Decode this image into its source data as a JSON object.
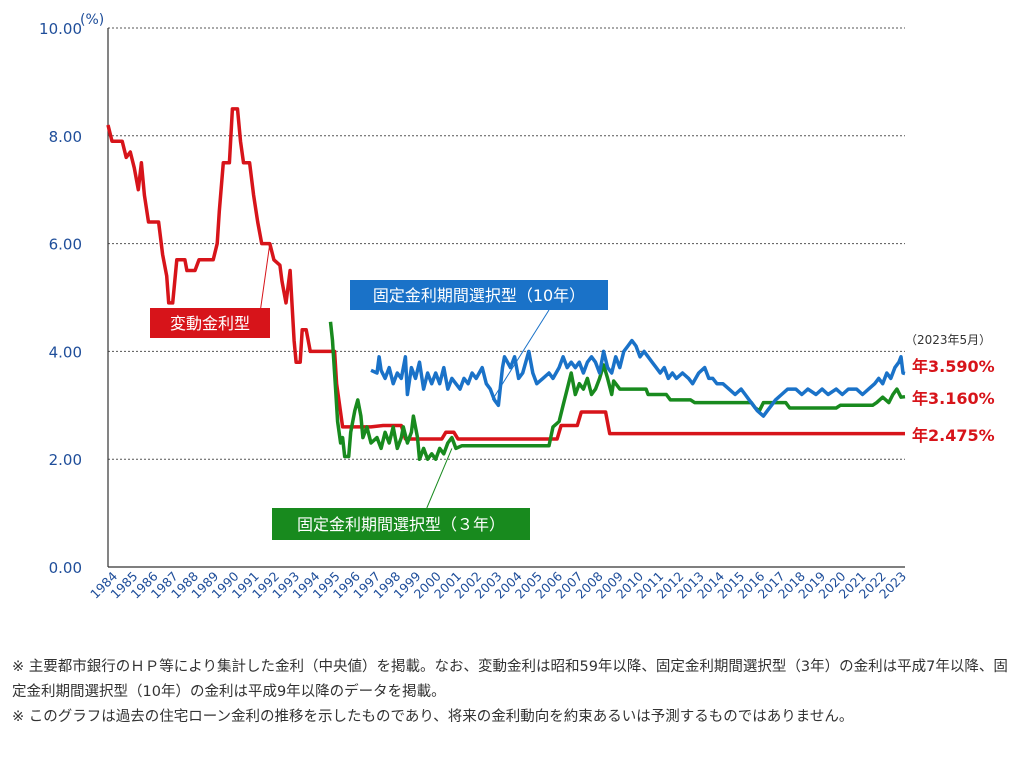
{
  "chart_data": {
    "type": "line",
    "ylabel_unit": "(%)",
    "ylim": [
      0,
      10
    ],
    "y_ticks": [
      "0.00",
      "2.00",
      "4.00",
      "6.00",
      "8.00",
      "10.00"
    ],
    "x_ticks": [
      "1984",
      "1985",
      "1986",
      "1987",
      "1988",
      "1989",
      "1990",
      "1991",
      "1992",
      "1993",
      "1994",
      "1995",
      "1996",
      "1997",
      "1998",
      "1999",
      "2000",
      "2001",
      "2002",
      "2003",
      "2004",
      "2005",
      "2006",
      "2007",
      "2008",
      "2009",
      "2010",
      "2011",
      "2012",
      "2013",
      "2014",
      "2015",
      "2016",
      "2017",
      "2018",
      "2019",
      "2020",
      "2021",
      "2022",
      "2023"
    ],
    "date_note": "（2023年5月）",
    "grid": "horizontal dotted",
    "colors": {
      "variable": "#d7141a",
      "fixed3": "#188a1e",
      "fixed10": "#1a72c8"
    },
    "series": [
      {
        "key": "variable",
        "name": "変動金利型",
        "end_label": "年2.475%",
        "points": [
          [
            1984.0,
            8.2
          ],
          [
            1984.2,
            7.9
          ],
          [
            1984.7,
            7.9
          ],
          [
            1984.9,
            7.6
          ],
          [
            1985.1,
            7.7
          ],
          [
            1985.3,
            7.4
          ],
          [
            1985.5,
            7.0
          ],
          [
            1985.65,
            7.5
          ],
          [
            1985.8,
            6.9
          ],
          [
            1986.0,
            6.4
          ],
          [
            1986.5,
            6.4
          ],
          [
            1986.7,
            5.8
          ],
          [
            1986.9,
            5.4
          ],
          [
            1987.0,
            4.9
          ],
          [
            1987.2,
            4.9
          ],
          [
            1987.4,
            5.7
          ],
          [
            1987.8,
            5.7
          ],
          [
            1987.9,
            5.5
          ],
          [
            1988.3,
            5.5
          ],
          [
            1988.5,
            5.7
          ],
          [
            1989.2,
            5.7
          ],
          [
            1989.4,
            6.0
          ],
          [
            1989.5,
            6.6
          ],
          [
            1989.7,
            7.5
          ],
          [
            1990.0,
            7.5
          ],
          [
            1990.15,
            8.5
          ],
          [
            1990.4,
            8.5
          ],
          [
            1990.55,
            7.9
          ],
          [
            1990.7,
            7.5
          ],
          [
            1991.0,
            7.5
          ],
          [
            1991.2,
            6.9
          ],
          [
            1991.4,
            6.4
          ],
          [
            1991.6,
            6.0
          ],
          [
            1992.0,
            6.0
          ],
          [
            1992.2,
            5.7
          ],
          [
            1992.5,
            5.6
          ],
          [
            1992.6,
            5.3
          ],
          [
            1992.8,
            4.9
          ],
          [
            1993.0,
            5.5
          ],
          [
            1993.2,
            4.2
          ],
          [
            1993.3,
            3.8
          ],
          [
            1993.5,
            3.8
          ],
          [
            1993.6,
            4.4
          ],
          [
            1993.8,
            4.4
          ],
          [
            1994.0,
            4.0
          ],
          [
            1994.5,
            4.0
          ],
          [
            1995.2,
            4.0
          ],
          [
            1995.3,
            3.4
          ],
          [
            1995.45,
            3.0
          ],
          [
            1995.6,
            2.6
          ],
          [
            1997.0,
            2.6
          ],
          [
            1997.6,
            2.625
          ],
          [
            1998.5,
            2.625
          ],
          [
            1998.7,
            2.375
          ],
          [
            2000.5,
            2.375
          ],
          [
            2000.7,
            2.5
          ],
          [
            2001.1,
            2.5
          ],
          [
            2001.3,
            2.375
          ],
          [
            2006.2,
            2.375
          ],
          [
            2006.4,
            2.625
          ],
          [
            2007.2,
            2.625
          ],
          [
            2007.4,
            2.875
          ],
          [
            2008.6,
            2.875
          ],
          [
            2008.8,
            2.475
          ],
          [
            2023.4,
            2.475
          ]
        ]
      },
      {
        "key": "fixed3",
        "name": "固定金利期間選択型（３年）",
        "end_label": "年3.160%",
        "points": [
          [
            1995.0,
            4.55
          ],
          [
            1995.1,
            4.2
          ],
          [
            1995.25,
            3.3
          ],
          [
            1995.35,
            2.7
          ],
          [
            1995.5,
            2.3
          ],
          [
            1995.6,
            2.4
          ],
          [
            1995.7,
            2.05
          ],
          [
            1995.9,
            2.05
          ],
          [
            1996.0,
            2.5
          ],
          [
            1996.2,
            2.9
          ],
          [
            1996.35,
            3.1
          ],
          [
            1996.5,
            2.8
          ],
          [
            1996.6,
            2.4
          ],
          [
            1996.8,
            2.6
          ],
          [
            1997.0,
            2.3
          ],
          [
            1997.3,
            2.4
          ],
          [
            1997.5,
            2.2
          ],
          [
            1997.7,
            2.5
          ],
          [
            1997.9,
            2.3
          ],
          [
            1998.1,
            2.6
          ],
          [
            1998.3,
            2.2
          ],
          [
            1998.5,
            2.4
          ],
          [
            1998.6,
            2.6
          ],
          [
            1998.8,
            2.3
          ],
          [
            1999.0,
            2.5
          ],
          [
            1999.1,
            2.8
          ],
          [
            1999.3,
            2.4
          ],
          [
            1999.4,
            2.0
          ],
          [
            1999.6,
            2.2
          ],
          [
            1999.8,
            2.0
          ],
          [
            2000.0,
            2.1
          ],
          [
            2000.2,
            2.0
          ],
          [
            2000.4,
            2.2
          ],
          [
            2000.6,
            2.1
          ],
          [
            2000.8,
            2.3
          ],
          [
            2001.0,
            2.4
          ],
          [
            2001.2,
            2.2
          ],
          [
            2001.5,
            2.25
          ],
          [
            2005.8,
            2.25
          ],
          [
            2006.0,
            2.6
          ],
          [
            2006.3,
            2.7
          ],
          [
            2006.5,
            3.0
          ],
          [
            2006.7,
            3.3
          ],
          [
            2006.9,
            3.6
          ],
          [
            2007.1,
            3.2
          ],
          [
            2007.3,
            3.4
          ],
          [
            2007.5,
            3.3
          ],
          [
            2007.7,
            3.5
          ],
          [
            2007.9,
            3.2
          ],
          [
            2008.1,
            3.3
          ],
          [
            2008.3,
            3.5
          ],
          [
            2008.5,
            3.75
          ],
          [
            2008.7,
            3.5
          ],
          [
            2008.9,
            3.2
          ],
          [
            2009.0,
            3.45
          ],
          [
            2009.3,
            3.3
          ],
          [
            2010.6,
            3.3
          ],
          [
            2010.7,
            3.2
          ],
          [
            2011.6,
            3.2
          ],
          [
            2011.8,
            3.1
          ],
          [
            2012.8,
            3.1
          ],
          [
            2013.0,
            3.05
          ],
          [
            2015.8,
            3.05
          ],
          [
            2016.0,
            2.95
          ],
          [
            2016.2,
            2.9
          ],
          [
            2016.4,
            3.05
          ],
          [
            2017.5,
            3.05
          ],
          [
            2017.7,
            2.95
          ],
          [
            2020.0,
            2.95
          ],
          [
            2020.2,
            3.0
          ],
          [
            2021.8,
            3.0
          ],
          [
            2022.0,
            3.05
          ],
          [
            2022.3,
            3.15
          ],
          [
            2022.6,
            3.05
          ],
          [
            2022.8,
            3.2
          ],
          [
            2023.0,
            3.3
          ],
          [
            2023.2,
            3.15
          ],
          [
            2023.4,
            3.16
          ]
        ]
      },
      {
        "key": "fixed10",
        "name": "固定金利期間選択型（10年）",
        "end_label": "年3.590%",
        "points": [
          [
            1997.0,
            3.65
          ],
          [
            1997.3,
            3.6
          ],
          [
            1997.4,
            3.9
          ],
          [
            1997.5,
            3.65
          ],
          [
            1997.7,
            3.5
          ],
          [
            1997.9,
            3.7
          ],
          [
            1998.1,
            3.4
          ],
          [
            1998.3,
            3.6
          ],
          [
            1998.5,
            3.5
          ],
          [
            1998.7,
            3.9
          ],
          [
            1998.8,
            3.2
          ],
          [
            1999.0,
            3.7
          ],
          [
            1999.2,
            3.5
          ],
          [
            1999.4,
            3.8
          ],
          [
            1999.6,
            3.3
          ],
          [
            1999.8,
            3.6
          ],
          [
            2000.0,
            3.4
          ],
          [
            2000.2,
            3.6
          ],
          [
            2000.4,
            3.4
          ],
          [
            2000.6,
            3.7
          ],
          [
            2000.8,
            3.3
          ],
          [
            2001.0,
            3.5
          ],
          [
            2001.2,
            3.4
          ],
          [
            2001.4,
            3.3
          ],
          [
            2001.6,
            3.5
          ],
          [
            2001.8,
            3.4
          ],
          [
            2002.0,
            3.6
          ],
          [
            2002.2,
            3.5
          ],
          [
            2002.5,
            3.7
          ],
          [
            2002.7,
            3.4
          ],
          [
            2002.9,
            3.3
          ],
          [
            2003.1,
            3.1
          ],
          [
            2003.3,
            3.0
          ],
          [
            2003.5,
            3.7
          ],
          [
            2003.6,
            3.9
          ],
          [
            2003.9,
            3.7
          ],
          [
            2004.1,
            3.9
          ],
          [
            2004.3,
            3.5
          ],
          [
            2004.5,
            3.6
          ],
          [
            2004.8,
            4.0
          ],
          [
            2005.0,
            3.6
          ],
          [
            2005.2,
            3.4
          ],
          [
            2005.5,
            3.5
          ],
          [
            2005.8,
            3.6
          ],
          [
            2006.0,
            3.5
          ],
          [
            2006.3,
            3.7
          ],
          [
            2006.5,
            3.9
          ],
          [
            2006.7,
            3.7
          ],
          [
            2006.9,
            3.8
          ],
          [
            2007.1,
            3.7
          ],
          [
            2007.3,
            3.8
          ],
          [
            2007.5,
            3.6
          ],
          [
            2007.7,
            3.8
          ],
          [
            2007.9,
            3.9
          ],
          [
            2008.1,
            3.8
          ],
          [
            2008.3,
            3.6
          ],
          [
            2008.5,
            4.0
          ],
          [
            2008.7,
            3.7
          ],
          [
            2008.9,
            3.6
          ],
          [
            2009.1,
            3.9
          ],
          [
            2009.3,
            3.7
          ],
          [
            2009.5,
            4.0
          ],
          [
            2009.7,
            4.1
          ],
          [
            2009.9,
            4.2
          ],
          [
            2010.1,
            4.1
          ],
          [
            2010.3,
            3.9
          ],
          [
            2010.5,
            4.0
          ],
          [
            2010.7,
            3.9
          ],
          [
            2010.9,
            3.8
          ],
          [
            2011.1,
            3.7
          ],
          [
            2011.3,
            3.6
          ],
          [
            2011.5,
            3.7
          ],
          [
            2011.7,
            3.5
          ],
          [
            2011.9,
            3.6
          ],
          [
            2012.1,
            3.5
          ],
          [
            2012.4,
            3.6
          ],
          [
            2012.7,
            3.5
          ],
          [
            2012.9,
            3.4
          ],
          [
            2013.2,
            3.6
          ],
          [
            2013.5,
            3.7
          ],
          [
            2013.7,
            3.5
          ],
          [
            2013.9,
            3.5
          ],
          [
            2014.1,
            3.4
          ],
          [
            2014.4,
            3.4
          ],
          [
            2014.7,
            3.3
          ],
          [
            2015.0,
            3.2
          ],
          [
            2015.3,
            3.3
          ],
          [
            2015.5,
            3.2
          ],
          [
            2015.7,
            3.1
          ],
          [
            2015.9,
            3.0
          ],
          [
            2016.1,
            2.9
          ],
          [
            2016.4,
            2.8
          ],
          [
            2016.6,
            2.9
          ],
          [
            2016.8,
            3.0
          ],
          [
            2017.0,
            3.1
          ],
          [
            2017.3,
            3.2
          ],
          [
            2017.6,
            3.3
          ],
          [
            2018.0,
            3.3
          ],
          [
            2018.3,
            3.2
          ],
          [
            2018.6,
            3.3
          ],
          [
            2019.0,
            3.2
          ],
          [
            2019.3,
            3.3
          ],
          [
            2019.6,
            3.2
          ],
          [
            2020.0,
            3.3
          ],
          [
            2020.3,
            3.2
          ],
          [
            2020.6,
            3.3
          ],
          [
            2021.0,
            3.3
          ],
          [
            2021.3,
            3.2
          ],
          [
            2021.6,
            3.3
          ],
          [
            2021.9,
            3.4
          ],
          [
            2022.1,
            3.5
          ],
          [
            2022.3,
            3.4
          ],
          [
            2022.5,
            3.6
          ],
          [
            2022.7,
            3.5
          ],
          [
            2022.9,
            3.7
          ],
          [
            2023.1,
            3.8
          ],
          [
            2023.2,
            3.9
          ],
          [
            2023.3,
            3.6
          ],
          [
            2023.4,
            3.59
          ]
        ]
      }
    ],
    "series_labels": {
      "variable": {
        "text": "変動金利型",
        "pointer_to": [
          1992.0,
          6.0
        ]
      },
      "fixed10": {
        "text": "固定金利期間選択型（10年）",
        "pointer_to": [
          2003.0,
          3.1
        ]
      },
      "fixed3": {
        "text": "固定金利期間選択型（３年）",
        "pointer_to": [
          2001.0,
          2.2
        ]
      }
    }
  },
  "notes": [
    "※ 主要都市銀行のＨＰ等により集計した金利（中央値）を掲載。なお、変動金利は昭和59年以降、固定金利期間選択型（3年）の金利は平成7年以降、固定金利期間選択型（10年）の金利は平成9年以降のデータを掲載。",
    "※ このグラフは過去の住宅ローン金利の推移を示したものであり、将来の金利動向を約束あるいは予測するものではありません。"
  ]
}
